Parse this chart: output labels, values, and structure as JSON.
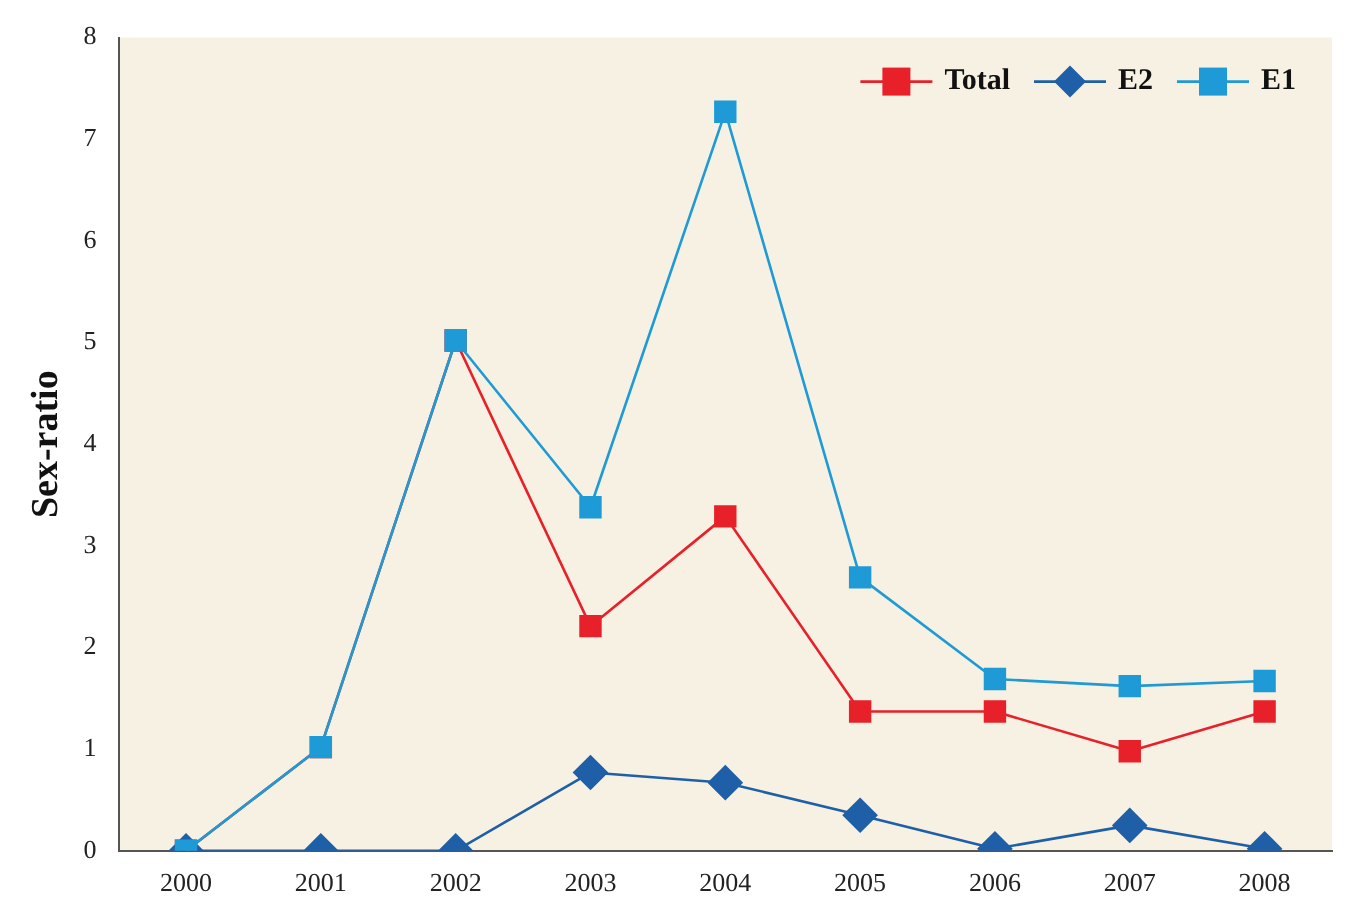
{
  "chart_data": {
    "type": "line",
    "ylabel": "Sex-ratio",
    "categories": [
      "2000",
      "2001",
      "2002",
      "2003",
      "2004",
      "2005",
      "2006",
      "2007",
      "2008"
    ],
    "series": [
      {
        "name": "Total",
        "color": "#e8202a",
        "marker": "square",
        "values": [
          0,
          1.02,
          5.02,
          2.21,
          3.29,
          1.37,
          1.37,
          0.98,
          1.37
        ]
      },
      {
        "name": "E2",
        "color": "#1f5fa8",
        "marker": "diamond",
        "values": [
          0,
          0,
          0,
          0.77,
          0.67,
          0.35,
          0.02,
          0.25,
          0.02
        ]
      },
      {
        "name": "E1",
        "color": "#1e9ad6",
        "marker": "square",
        "values": [
          0,
          1.02,
          5.02,
          3.38,
          7.27,
          2.69,
          1.69,
          1.62,
          1.67
        ]
      }
    ],
    "ylim": [
      0,
      8
    ],
    "yticks": [
      0,
      1,
      2,
      3,
      4,
      5,
      6,
      7,
      8
    ],
    "grid": false,
    "legend": "top right"
  }
}
